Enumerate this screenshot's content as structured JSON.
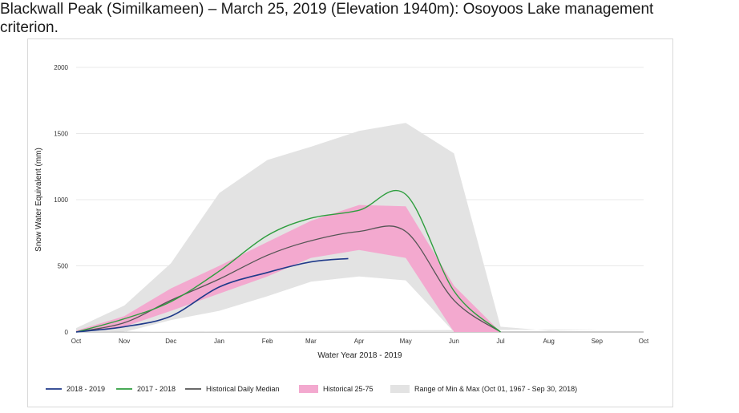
{
  "caption": {
    "line1": "Blackwall Peak (Similkameen) – March 25, 2019 (Elevation 1940m): Osoyoos Lake management",
    "line2": "criterion."
  },
  "colors": {
    "current": "#1f3a8a",
    "previous": "#2e9e3e",
    "median": "#555555",
    "p25_75": "#f3a9cf",
    "minmax": "#e3e3e3",
    "grid": "#e8e8e8"
  },
  "chart_data": {
    "type": "area",
    "xlabel": "Water Year 2018 - 2019",
    "ylabel": "Snow Water Equivalent (mm)",
    "ylim": [
      0,
      2000
    ],
    "yticks": [
      0,
      500,
      1000,
      1500,
      2000
    ],
    "xticks": [
      "Oct",
      "Nov",
      "Dec",
      "Jan",
      "Feb",
      "Mar",
      "Apr",
      "May",
      "Jun",
      "Jul",
      "Aug",
      "Sep",
      "Oct"
    ],
    "grid": true,
    "legend_position": "bottom",
    "bands": [
      {
        "name": "Range of Min & Max (Oct 01, 1967 - Sep 30, 2018)",
        "x": [
          "Oct",
          "Nov",
          "Dec",
          "Jan",
          "Feb",
          "Mar",
          "Apr",
          "May",
          "Jun",
          "Jul",
          "Aug",
          "Sep",
          "Oct"
        ],
        "lower": [
          0,
          0,
          90,
          160,
          270,
          380,
          420,
          390,
          0,
          0,
          0,
          0,
          0
        ],
        "upper": [
          30,
          200,
          520,
          1050,
          1300,
          1400,
          1520,
          1580,
          1350,
          40,
          10,
          20,
          0
        ]
      },
      {
        "name": "Historical 25-75",
        "x": [
          "Oct",
          "Nov",
          "Dec",
          "Jan",
          "Feb",
          "Mar",
          "Apr",
          "May",
          "Jun",
          "Jul",
          "Aug",
          "Sep",
          "Oct"
        ],
        "lower": [
          0,
          40,
          160,
          290,
          420,
          560,
          620,
          560,
          0,
          0,
          0,
          0,
          0
        ],
        "upper": [
          10,
          120,
          330,
          500,
          680,
          840,
          960,
          950,
          350,
          0,
          0,
          0,
          0
        ]
      }
    ],
    "series": [
      {
        "name": "2018 - 2019",
        "x": [
          "Oct",
          "Nov",
          "Dec",
          "Jan",
          "Feb",
          "Mar",
          "Mar 25"
        ],
        "values": [
          0,
          40,
          120,
          340,
          450,
          530,
          555
        ]
      },
      {
        "name": "2017 - 2018",
        "x": [
          "Oct",
          "Nov",
          "Dec",
          "Jan",
          "Feb",
          "Mar",
          "Apr",
          "May",
          "Jun",
          "Jul"
        ],
        "values": [
          0,
          100,
          230,
          460,
          730,
          860,
          920,
          1040,
          310,
          0
        ]
      },
      {
        "name": "Historical Daily Median",
        "x": [
          "Oct",
          "Nov",
          "Dec",
          "Jan",
          "Feb",
          "Mar",
          "Apr",
          "May",
          "Jun",
          "Jul"
        ],
        "values": [
          0,
          70,
          240,
          400,
          580,
          690,
          760,
          760,
          240,
          0
        ]
      }
    ]
  }
}
